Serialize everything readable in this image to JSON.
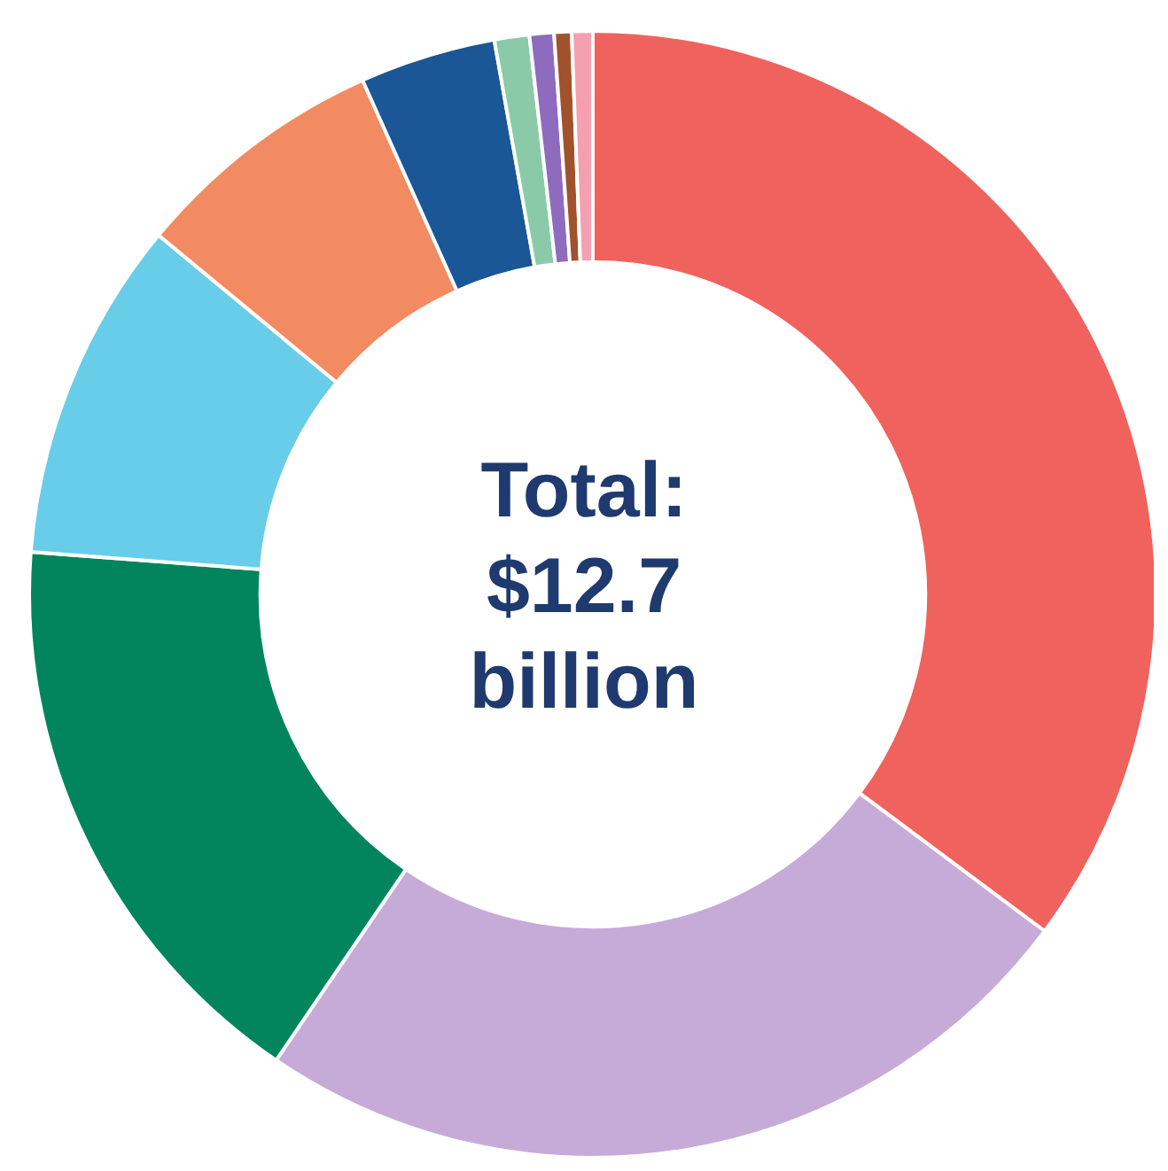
{
  "chart_data": {
    "type": "donut",
    "annotations": [
      "Total: $12.7 billion"
    ],
    "categories": [
      null,
      null,
      null,
      null,
      null,
      null,
      null,
      null,
      null,
      null
    ],
    "values": [
      35.2,
      24.3,
      16.7,
      9.8,
      7.3,
      3.9,
      1.0,
      0.7,
      0.5,
      0.6
    ],
    "colors": [
      "#f0625d",
      "#c6abd9",
      "#02855c",
      "#68cde8",
      "#f28a62",
      "#1b5796",
      "#8acaa8",
      "#8e6bbf",
      "#a0522d",
      "#f4a0b0"
    ],
    "legend": false
  }
}
